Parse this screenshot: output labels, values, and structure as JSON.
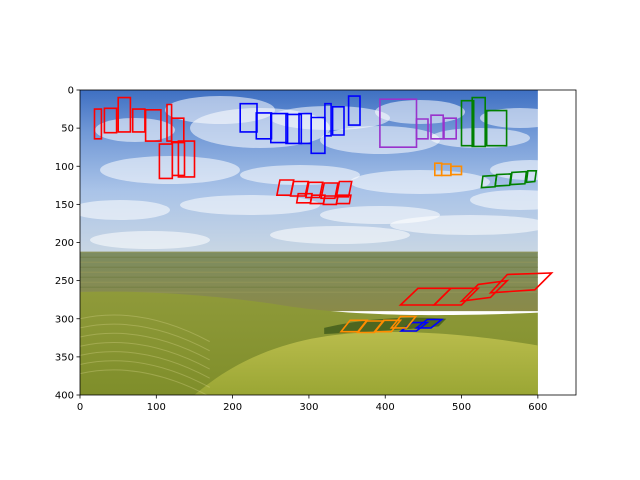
{
  "chart_data": {
    "type": "image_with_annotations",
    "title": "",
    "xlabel": "",
    "ylabel": "",
    "xlim": [
      0,
      650
    ],
    "ylim": [
      400,
      0
    ],
    "y_inverted": true,
    "image_extent": [
      0,
      600,
      400,
      0
    ],
    "grid": false,
    "legend": "none",
    "x_ticks": [
      "0",
      "100",
      "200",
      "300",
      "400",
      "500",
      "600"
    ],
    "y_ticks": [
      "0",
      "50",
      "100",
      "150",
      "200",
      "250",
      "300",
      "350",
      "400"
    ],
    "scene": {
      "sky_top": "#3e6fc2",
      "sky_mid": "#a9c3e8",
      "horizon": "#b4c8d8",
      "distant_fields": "#7a8a4e",
      "hills": "#9aa43a",
      "valley": "#b4b848"
    },
    "annotations": [
      {
        "color": "#ff0000",
        "word": "",
        "boxes": [
          [
            [
              19,
              25
            ],
            [
              28,
              25
            ],
            [
              28,
              64
            ],
            [
              19,
              64
            ]
          ],
          [
            [
              32,
              24
            ],
            [
              48,
              24
            ],
            [
              48,
              56
            ],
            [
              32,
              56
            ]
          ],
          [
            [
              50,
              10
            ],
            [
              66,
              10
            ],
            [
              66,
              55
            ],
            [
              50,
              55
            ]
          ],
          [
            [
              69,
              25
            ],
            [
              85,
              25
            ],
            [
              85,
              55
            ],
            [
              69,
              55
            ]
          ],
          [
            [
              86,
              26
            ],
            [
              106,
              26
            ],
            [
              106,
              67
            ],
            [
              86,
              67
            ]
          ],
          [
            [
              114,
              19
            ],
            [
              120,
              19
            ],
            [
              120,
              67
            ],
            [
              114,
              67
            ]
          ]
        ]
      },
      {
        "color": "#ff0000",
        "word": "",
        "boxes": [
          [
            [
              120,
              37
            ],
            [
              136,
              37
            ],
            [
              136,
              69
            ],
            [
              120,
              69
            ]
          ],
          [
            [
              104,
              71
            ],
            [
              121,
              71
            ],
            [
              121,
              116
            ],
            [
              104,
              116
            ]
          ],
          [
            [
              121,
              68
            ],
            [
              137,
              68
            ],
            [
              137,
              112
            ],
            [
              121,
              112
            ]
          ],
          [
            [
              129,
              67
            ],
            [
              150,
              67
            ],
            [
              150,
              114
            ],
            [
              129,
              114
            ]
          ]
        ]
      },
      {
        "color": "#0000ff",
        "word": "",
        "boxes": [
          [
            [
              210,
              18
            ],
            [
              232,
              18
            ],
            [
              232,
              55
            ],
            [
              210,
              55
            ]
          ],
          [
            [
              231,
              30
            ],
            [
              251,
              30
            ],
            [
              251,
              64
            ],
            [
              231,
              64
            ]
          ],
          [
            [
              250,
              31
            ],
            [
              272,
              31
            ],
            [
              272,
              69
            ],
            [
              250,
              69
            ]
          ],
          [
            [
              270,
              32
            ],
            [
              290,
              32
            ],
            [
              290,
              70
            ],
            [
              270,
              70
            ]
          ],
          [
            [
              287,
              31
            ],
            [
              303,
              31
            ],
            [
              303,
              70
            ],
            [
              287,
              70
            ]
          ],
          [
            [
              303,
              36
            ],
            [
              321,
              36
            ],
            [
              321,
              83
            ],
            [
              303,
              83
            ]
          ],
          [
            [
              321,
              18
            ],
            [
              329,
              18
            ],
            [
              329,
              60
            ],
            [
              321,
              60
            ]
          ],
          [
            [
              331,
              22
            ],
            [
              346,
              22
            ],
            [
              346,
              59
            ],
            [
              331,
              59
            ]
          ],
          [
            [
              352,
              8
            ],
            [
              367,
              8
            ],
            [
              367,
              46
            ],
            [
              352,
              46
            ]
          ]
        ]
      },
      {
        "color": "#9933cc",
        "word": "",
        "boxes": [
          [
            [
              393,
              12
            ],
            [
              441,
              12
            ],
            [
              441,
              75
            ],
            [
              393,
              75
            ]
          ],
          [
            [
              441,
              38
            ],
            [
              456,
              38
            ],
            [
              456,
              64
            ],
            [
              441,
              64
            ]
          ],
          [
            [
              460,
              33
            ],
            [
              476,
              33
            ],
            [
              476,
              64
            ],
            [
              460,
              64
            ]
          ],
          [
            [
              477,
              37
            ],
            [
              493,
              37
            ],
            [
              493,
              64
            ],
            [
              477,
              64
            ]
          ]
        ]
      },
      {
        "color": "#008000",
        "word": "",
        "boxes": [
          [
            [
              500,
              14
            ],
            [
              516,
              14
            ],
            [
              516,
              73
            ],
            [
              500,
              73
            ]
          ],
          [
            [
              514,
              10
            ],
            [
              531,
              10
            ],
            [
              531,
              74
            ],
            [
              514,
              74
            ]
          ],
          [
            [
              533,
              27
            ],
            [
              559,
              27
            ],
            [
              559,
              73
            ],
            [
              533,
              73
            ]
          ]
        ]
      },
      {
        "color": "#ff8c00",
        "word": "",
        "boxes": [
          [
            [
              465,
              96
            ],
            [
              474,
              96
            ],
            [
              474,
              112
            ],
            [
              465,
              112
            ]
          ],
          [
            [
              474,
              97
            ],
            [
              486,
              97
            ],
            [
              486,
              112
            ],
            [
              474,
              112
            ]
          ],
          [
            [
              486,
              100
            ],
            [
              500,
              100
            ],
            [
              500,
              111
            ],
            [
              486,
              111
            ]
          ]
        ]
      },
      {
        "color": "#008000",
        "word": "",
        "boxes": [
          [
            [
              528,
              113
            ],
            [
              546,
              112
            ],
            [
              544,
              127
            ],
            [
              526,
              128
            ]
          ],
          [
            [
              546,
              111
            ],
            [
              565,
              110
            ],
            [
              563,
              125
            ],
            [
              544,
              126
            ]
          ],
          [
            [
              566,
              108
            ],
            [
              585,
              107
            ],
            [
              583,
              123
            ],
            [
              564,
              124
            ]
          ],
          [
            [
              587,
              106
            ],
            [
              598,
              106
            ],
            [
              596,
              120
            ],
            [
              585,
              121
            ]
          ]
        ]
      },
      {
        "color": "#ff0000",
        "word": "",
        "boxes": [
          [
            [
              262,
              118
            ],
            [
              280,
              118
            ],
            [
              276,
              138
            ],
            [
              258,
              138
            ]
          ],
          [
            [
              280,
              120
            ],
            [
              299,
              120
            ],
            [
              295,
              139
            ],
            [
              276,
              139
            ]
          ],
          [
            [
              300,
              121
            ],
            [
              318,
              121
            ],
            [
              314,
              141
            ],
            [
              296,
              141
            ]
          ],
          [
            [
              320,
              122
            ],
            [
              338,
              122
            ],
            [
              334,
              142
            ],
            [
              316,
              142
            ]
          ],
          [
            [
              340,
              120
            ],
            [
              356,
              120
            ],
            [
              352,
              140
            ],
            [
              336,
              140
            ]
          ]
        ]
      },
      {
        "color": "#ff0000",
        "word": "",
        "boxes": [
          [
            [
              286,
              136
            ],
            [
              304,
              136
            ],
            [
              302,
              148
            ],
            [
              284,
              148
            ]
          ],
          [
            [
              304,
              138
            ],
            [
              321,
              138
            ],
            [
              319,
              149
            ],
            [
              302,
              149
            ]
          ],
          [
            [
              321,
              139
            ],
            [
              338,
              139
            ],
            [
              336,
              150
            ],
            [
              319,
              150
            ]
          ],
          [
            [
              338,
              138
            ],
            [
              355,
              138
            ],
            [
              353,
              149
            ],
            [
              336,
              149
            ]
          ]
        ]
      },
      {
        "color": "#ff0000",
        "word": "",
        "boxes": [
          [
            [
              443,
              260
            ],
            [
              486,
              260
            ],
            [
              464,
              282
            ],
            [
              420,
              282
            ]
          ],
          [
            [
              486,
              260
            ],
            [
              522,
              260
            ],
            [
              500,
              282
            ],
            [
              464,
              282
            ]
          ],
          [
            [
              522,
              255
            ],
            [
              560,
              250
            ],
            [
              538,
              272
            ],
            [
              500,
              277
            ]
          ],
          [
            [
              560,
              242
            ],
            [
              618,
              240
            ],
            [
              596,
              262
            ],
            [
              538,
              266
            ]
          ]
        ]
      },
      {
        "color": "#0000ff",
        "word": "",
        "boxes": [
          [
            [
              435,
              305
            ],
            [
              455,
              305
            ],
            [
              441,
              316
            ],
            [
              421,
              316
            ]
          ],
          [
            [
              455,
              301
            ],
            [
              474,
              301
            ],
            [
              460,
              312
            ],
            [
              441,
              312
            ]
          ]
        ]
      },
      {
        "color": "#ff8c00",
        "word": "",
        "boxes": [
          [
            [
              354,
              302
            ],
            [
              376,
              302
            ],
            [
              364,
              317
            ],
            [
              342,
              317
            ]
          ],
          [
            [
              376,
              303
            ],
            [
              398,
              303
            ],
            [
              386,
              318
            ],
            [
              364,
              318
            ]
          ],
          [
            [
              398,
              302
            ],
            [
              420,
              302
            ],
            [
              408,
              317
            ],
            [
              386,
              317
            ]
          ],
          [
            [
              420,
              297
            ],
            [
              440,
              297
            ],
            [
              428,
              312
            ],
            [
              408,
              312
            ]
          ]
        ]
      }
    ]
  }
}
